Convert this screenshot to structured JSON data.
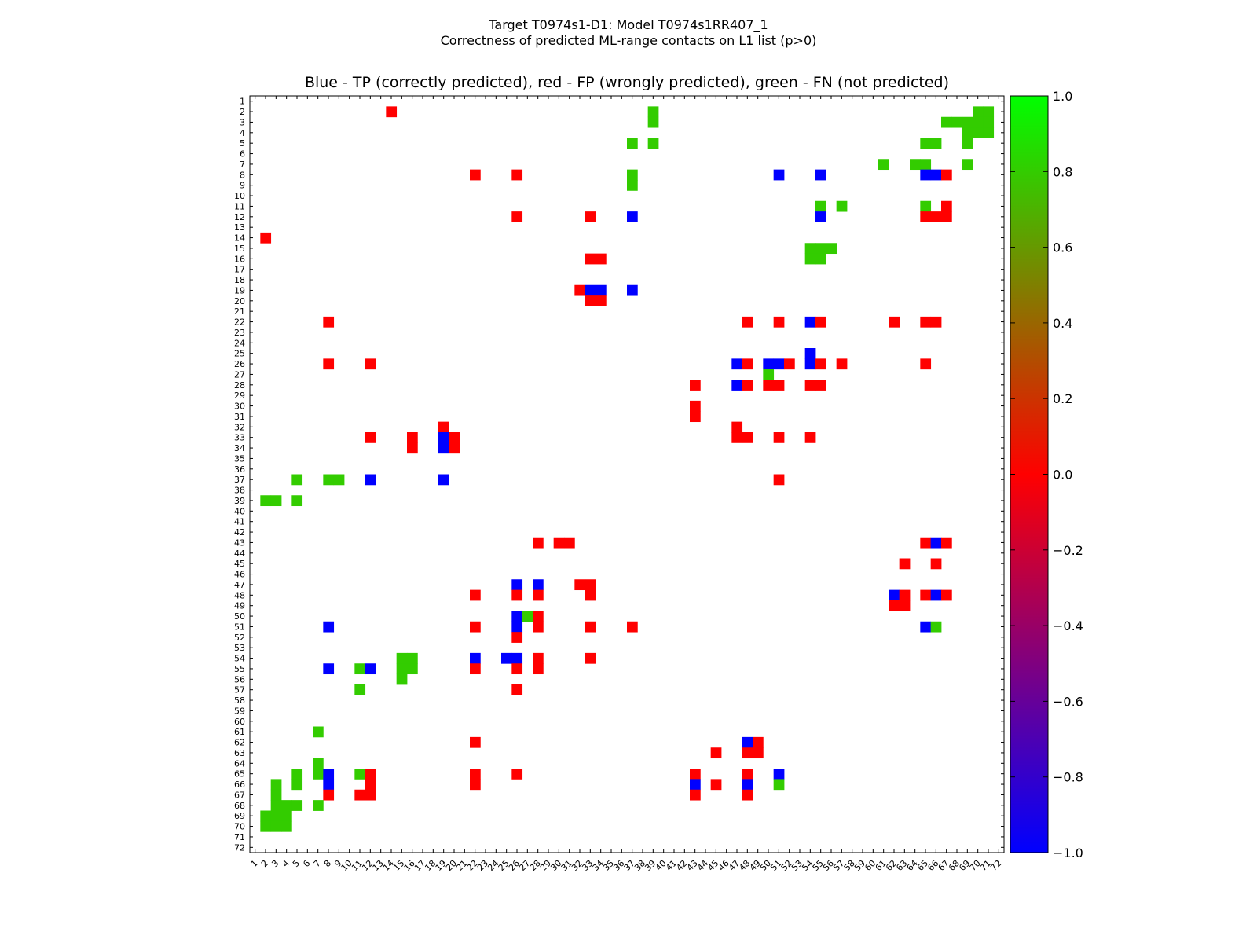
{
  "chart_data": {
    "type": "heatmap",
    "title": "Target T0974s1-D1: Model T0974s1RR407_1",
    "subtitle": "Correctness of predicted ML-range contacts on L1 list (p>0)",
    "axes_title": "Blue - TP (correctly predicted), red - FP (wrongly predicted), green - FN (not predicted)",
    "n_residues": 72,
    "x_tick_labels": [
      "1",
      "2",
      "3",
      "4",
      "5",
      "6",
      "7",
      "8",
      "9",
      "10",
      "11",
      "12",
      "13",
      "14",
      "15",
      "16",
      "17",
      "18",
      "19",
      "20",
      "21",
      "22",
      "23",
      "24",
      "25",
      "26",
      "27",
      "28",
      "29",
      "30",
      "31",
      "32",
      "33",
      "34",
      "35",
      "36",
      "37",
      "38",
      "39",
      "40",
      "41",
      "42",
      "43",
      "44",
      "45",
      "46",
      "47",
      "48",
      "49",
      "50",
      "51",
      "52",
      "53",
      "54",
      "55",
      "56",
      "57",
      "58",
      "59",
      "60",
      "61",
      "62",
      "63",
      "64",
      "65",
      "66",
      "67",
      "68",
      "69",
      "70",
      "71",
      "72"
    ],
    "y_tick_labels": [
      "1",
      "2",
      "3",
      "4",
      "5",
      "6",
      "7",
      "8",
      "9",
      "10",
      "11",
      "12",
      "13",
      "14",
      "15",
      "16",
      "17",
      "18",
      "19",
      "20",
      "21",
      "22",
      "23",
      "24",
      "25",
      "26",
      "27",
      "28",
      "29",
      "30",
      "31",
      "32",
      "33",
      "34",
      "35",
      "36",
      "37",
      "38",
      "39",
      "40",
      "41",
      "42",
      "43",
      "44",
      "45",
      "46",
      "47",
      "48",
      "49",
      "50",
      "51",
      "52",
      "53",
      "54",
      "55",
      "56",
      "57",
      "58",
      "59",
      "60",
      "61",
      "62",
      "63",
      "64",
      "65",
      "66",
      "67",
      "68",
      "69",
      "70",
      "71",
      "72"
    ],
    "colorbar": {
      "min": -1.0,
      "max": 1.0,
      "ticks": [
        "1.0",
        "0.8",
        "0.6",
        "0.4",
        "0.2",
        "0.0",
        "−0.2",
        "−0.4",
        "−0.6",
        "−0.8",
        "−1.0"
      ],
      "tick_values": [
        1.0,
        0.8,
        0.6,
        0.4,
        0.2,
        0.0,
        -0.2,
        -0.4,
        -0.6,
        -0.8,
        -1.0
      ],
      "stops": [
        {
          "value": -1.0,
          "color": "#0000ff"
        },
        {
          "value": 0.0,
          "color": "#ff0000"
        },
        {
          "value": 1.0,
          "color": "#00ff00"
        }
      ]
    },
    "categories": {
      "TP": {
        "value": -1.0,
        "color": "#0000ff",
        "label": "Blue - TP (correctly predicted)"
      },
      "FP": {
        "value": 0.0,
        "color": "#ff0000",
        "label": "red - FP (wrongly predicted)"
      },
      "FN": {
        "value": 0.8,
        "color": "#33cc00",
        "label": "green - FN (not predicted)"
      }
    },
    "cells": [
      [
        2,
        14,
        "FP"
      ],
      [
        2,
        39,
        "FN"
      ],
      [
        3,
        39,
        "FN"
      ],
      [
        2,
        70,
        "FN"
      ],
      [
        2,
        71,
        "FN"
      ],
      [
        3,
        70,
        "FN"
      ],
      [
        3,
        71,
        "FN"
      ],
      [
        3,
        67,
        "FN"
      ],
      [
        3,
        68,
        "FN"
      ],
      [
        3,
        69,
        "FN"
      ],
      [
        4,
        69,
        "FN"
      ],
      [
        4,
        70,
        "FN"
      ],
      [
        4,
        71,
        "FN"
      ],
      [
        5,
        37,
        "FN"
      ],
      [
        5,
        39,
        "FN"
      ],
      [
        5,
        65,
        "FN"
      ],
      [
        5,
        66,
        "FN"
      ],
      [
        5,
        69,
        "FN"
      ],
      [
        7,
        61,
        "FN"
      ],
      [
        7,
        64,
        "FN"
      ],
      [
        7,
        65,
        "FN"
      ],
      [
        7,
        69,
        "FN"
      ],
      [
        8,
        22,
        "FP"
      ],
      [
        8,
        26,
        "FP"
      ],
      [
        8,
        37,
        "FN"
      ],
      [
        8,
        51,
        "TP"
      ],
      [
        8,
        55,
        "TP"
      ],
      [
        8,
        65,
        "TP"
      ],
      [
        8,
        66,
        "TP"
      ],
      [
        8,
        67,
        "FP"
      ],
      [
        9,
        37,
        "FN"
      ],
      [
        11,
        55,
        "FN"
      ],
      [
        11,
        57,
        "FN"
      ],
      [
        11,
        65,
        "FN"
      ],
      [
        11,
        67,
        "FP"
      ],
      [
        12,
        26,
        "FP"
      ],
      [
        12,
        33,
        "FP"
      ],
      [
        12,
        37,
        "TP"
      ],
      [
        12,
        55,
        "TP"
      ],
      [
        12,
        65,
        "FP"
      ],
      [
        12,
        66,
        "FP"
      ],
      [
        12,
        67,
        "FP"
      ],
      [
        14,
        2,
        "FP"
      ],
      [
        15,
        54,
        "FN"
      ],
      [
        15,
        55,
        "FN"
      ],
      [
        15,
        56,
        "FN"
      ],
      [
        16,
        54,
        "FN"
      ],
      [
        16,
        55,
        "FN"
      ],
      [
        16,
        33,
        "FP"
      ],
      [
        16,
        34,
        "FP"
      ],
      [
        19,
        32,
        "FP"
      ],
      [
        19,
        33,
        "TP"
      ],
      [
        19,
        34,
        "TP"
      ],
      [
        19,
        37,
        "TP"
      ],
      [
        20,
        33,
        "FP"
      ],
      [
        20,
        34,
        "FP"
      ],
      [
        22,
        8,
        "FP"
      ],
      [
        22,
        48,
        "FP"
      ],
      [
        22,
        51,
        "FP"
      ],
      [
        22,
        54,
        "TP"
      ],
      [
        22,
        55,
        "FP"
      ],
      [
        22,
        62,
        "FP"
      ],
      [
        22,
        65,
        "FP"
      ],
      [
        22,
        66,
        "FP"
      ],
      [
        25,
        54,
        "TP"
      ],
      [
        26,
        8,
        "FP"
      ],
      [
        26,
        12,
        "FP"
      ],
      [
        26,
        47,
        "TP"
      ],
      [
        26,
        48,
        "FP"
      ],
      [
        26,
        50,
        "TP"
      ],
      [
        26,
        51,
        "TP"
      ],
      [
        26,
        52,
        "FP"
      ],
      [
        26,
        54,
        "TP"
      ],
      [
        26,
        55,
        "FP"
      ],
      [
        26,
        57,
        "FP"
      ],
      [
        26,
        65,
        "FP"
      ],
      [
        27,
        50,
        "FN"
      ],
      [
        28,
        43,
        "FP"
      ],
      [
        28,
        47,
        "TP"
      ],
      [
        28,
        48,
        "FP"
      ],
      [
        28,
        50,
        "FP"
      ],
      [
        28,
        51,
        "FP"
      ],
      [
        28,
        54,
        "FP"
      ],
      [
        28,
        55,
        "FP"
      ],
      [
        30,
        43,
        "FP"
      ],
      [
        31,
        43,
        "FP"
      ],
      [
        32,
        19,
        "FP"
      ],
      [
        32,
        47,
        "FP"
      ],
      [
        33,
        12,
        "FP"
      ],
      [
        33,
        16,
        "FP"
      ],
      [
        33,
        19,
        "TP"
      ],
      [
        33,
        20,
        "FP"
      ],
      [
        33,
        47,
        "FP"
      ],
      [
        33,
        48,
        "FP"
      ],
      [
        33,
        51,
        "FP"
      ],
      [
        33,
        54,
        "FP"
      ],
      [
        34,
        16,
        "FP"
      ],
      [
        34,
        19,
        "TP"
      ],
      [
        34,
        20,
        "FP"
      ],
      [
        37,
        5,
        "FN"
      ],
      [
        37,
        8,
        "FN"
      ],
      [
        37,
        9,
        "FN"
      ],
      [
        37,
        12,
        "TP"
      ],
      [
        37,
        19,
        "TP"
      ],
      [
        37,
        51,
        "FP"
      ],
      [
        39,
        2,
        "FN"
      ],
      [
        39,
        3,
        "FN"
      ],
      [
        39,
        5,
        "FN"
      ],
      [
        43,
        28,
        "FP"
      ],
      [
        43,
        30,
        "FP"
      ],
      [
        43,
        31,
        "FP"
      ],
      [
        43,
        65,
        "FP"
      ],
      [
        43,
        66,
        "TP"
      ],
      [
        43,
        67,
        "FP"
      ],
      [
        45,
        63,
        "FP"
      ],
      [
        45,
        66,
        "FP"
      ],
      [
        47,
        26,
        "TP"
      ],
      [
        47,
        28,
        "TP"
      ],
      [
        47,
        32,
        "FP"
      ],
      [
        47,
        33,
        "FP"
      ],
      [
        48,
        22,
        "FP"
      ],
      [
        48,
        26,
        "FP"
      ],
      [
        48,
        28,
        "FP"
      ],
      [
        48,
        33,
        "FP"
      ],
      [
        48,
        62,
        "TP"
      ],
      [
        48,
        63,
        "FP"
      ],
      [
        48,
        65,
        "FP"
      ],
      [
        48,
        66,
        "TP"
      ],
      [
        48,
        67,
        "FP"
      ],
      [
        49,
        62,
        "FP"
      ],
      [
        49,
        63,
        "FP"
      ],
      [
        50,
        26,
        "TP"
      ],
      [
        50,
        27,
        "FN"
      ],
      [
        50,
        28,
        "FP"
      ],
      [
        51,
        8,
        "TP"
      ],
      [
        51,
        22,
        "FP"
      ],
      [
        51,
        26,
        "TP"
      ],
      [
        51,
        28,
        "FP"
      ],
      [
        51,
        33,
        "FP"
      ],
      [
        51,
        37,
        "FP"
      ],
      [
        51,
        65,
        "TP"
      ],
      [
        51,
        66,
        "FN"
      ],
      [
        52,
        26,
        "FP"
      ],
      [
        54,
        15,
        "FN"
      ],
      [
        54,
        16,
        "FN"
      ],
      [
        54,
        22,
        "TP"
      ],
      [
        54,
        25,
        "TP"
      ],
      [
        54,
        26,
        "TP"
      ],
      [
        54,
        28,
        "FP"
      ],
      [
        54,
        33,
        "FP"
      ],
      [
        55,
        8,
        "TP"
      ],
      [
        55,
        11,
        "FN"
      ],
      [
        55,
        12,
        "TP"
      ],
      [
        55,
        15,
        "FN"
      ],
      [
        55,
        16,
        "FN"
      ],
      [
        55,
        22,
        "FP"
      ],
      [
        55,
        26,
        "FP"
      ],
      [
        55,
        28,
        "FP"
      ],
      [
        56,
        15,
        "FN"
      ],
      [
        57,
        11,
        "FN"
      ],
      [
        57,
        26,
        "FP"
      ],
      [
        61,
        7,
        "FN"
      ],
      [
        62,
        22,
        "FP"
      ],
      [
        62,
        48,
        "TP"
      ],
      [
        62,
        49,
        "FP"
      ],
      [
        63,
        45,
        "FP"
      ],
      [
        63,
        48,
        "FP"
      ],
      [
        63,
        49,
        "FP"
      ],
      [
        64,
        7,
        "FN"
      ],
      [
        65,
        5,
        "FN"
      ],
      [
        65,
        7,
        "FN"
      ],
      [
        65,
        8,
        "TP"
      ],
      [
        65,
        11,
        "FN"
      ],
      [
        65,
        12,
        "FP"
      ],
      [
        65,
        22,
        "FP"
      ],
      [
        65,
        26,
        "FP"
      ],
      [
        65,
        43,
        "FP"
      ],
      [
        65,
        48,
        "FP"
      ],
      [
        65,
        51,
        "TP"
      ],
      [
        66,
        3,
        "FN"
      ],
      [
        66,
        5,
        "FN"
      ],
      [
        66,
        8,
        "TP"
      ],
      [
        66,
        12,
        "FP"
      ],
      [
        66,
        22,
        "FP"
      ],
      [
        66,
        43,
        "TP"
      ],
      [
        66,
        45,
        "FP"
      ],
      [
        66,
        48,
        "TP"
      ],
      [
        66,
        51,
        "FN"
      ],
      [
        67,
        3,
        "FN"
      ],
      [
        67,
        8,
        "FP"
      ],
      [
        67,
        11,
        "FP"
      ],
      [
        67,
        12,
        "FP"
      ],
      [
        67,
        43,
        "FP"
      ],
      [
        67,
        48,
        "FP"
      ],
      [
        68,
        3,
        "FN"
      ],
      [
        68,
        4,
        "FN"
      ],
      [
        68,
        5,
        "FN"
      ],
      [
        68,
        7,
        "FN"
      ],
      [
        69,
        2,
        "FN"
      ],
      [
        69,
        3,
        "FN"
      ],
      [
        69,
        4,
        "FN"
      ],
      [
        70,
        2,
        "FN"
      ],
      [
        70,
        3,
        "FN"
      ],
      [
        70,
        4,
        "FN"
      ]
    ]
  }
}
